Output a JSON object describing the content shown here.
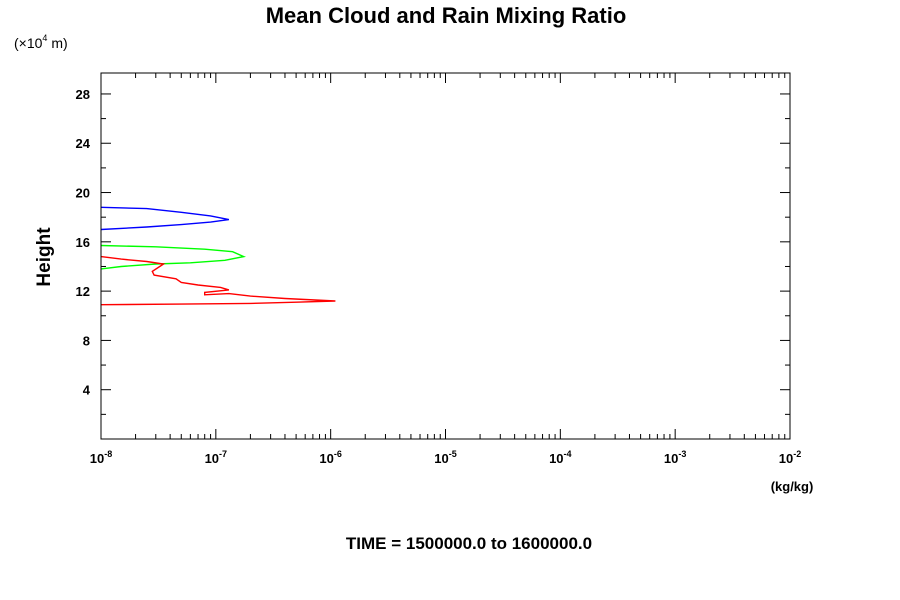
{
  "chart_data": {
    "type": "line",
    "title": "Mean Cloud and Rain Mixing Ratio",
    "ylabel": "Height",
    "y_multiplier": "(×10",
    "y_multiplier_exp": "4",
    "y_multiplier_unit": " m)",
    "xlabel_unit": "(kg/kg)",
    "footer": "TIME = 1500000.0 to 1600000.0",
    "x_scale": "log",
    "xlim": [
      1e-08,
      0.01
    ],
    "ylim": [
      0,
      29.7
    ],
    "x_tick_base": "10",
    "x_tick_exponents": [
      "-8",
      "-7",
      "-6",
      "-5",
      "-4",
      "-3",
      "-2"
    ],
    "y_ticks": [
      4,
      8,
      12,
      16,
      20,
      24,
      28
    ],
    "grid": false,
    "series": [
      {
        "color": "#0000ff",
        "points": [
          [
            1e-08,
            18.8
          ],
          [
            2.5e-08,
            18.7
          ],
          [
            5e-08,
            18.4
          ],
          [
            9e-08,
            18.1
          ],
          [
            1.3e-07,
            17.8
          ],
          [
            9e-08,
            17.6
          ],
          [
            5e-08,
            17.4
          ],
          [
            2.5e-08,
            17.2
          ],
          [
            1e-08,
            17.0
          ]
        ]
      },
      {
        "color": "#00ff00",
        "points": [
          [
            1e-08,
            15.7
          ],
          [
            3e-08,
            15.6
          ],
          [
            8e-08,
            15.4
          ],
          [
            1.4e-07,
            15.2
          ],
          [
            1.75e-07,
            14.8
          ],
          [
            1.2e-07,
            14.5
          ],
          [
            6e-08,
            14.3
          ],
          [
            3e-08,
            14.2
          ],
          [
            1.5e-08,
            14.0
          ],
          [
            1e-08,
            13.8
          ]
        ]
      },
      {
        "color": "#ff0000",
        "points": [
          [
            1e-08,
            14.8
          ],
          [
            1.5e-08,
            14.6
          ],
          [
            2.5e-08,
            14.4
          ],
          [
            3.5e-08,
            14.2
          ],
          [
            2.8e-08,
            13.6
          ],
          [
            2.9e-08,
            13.3
          ],
          [
            4.5e-08,
            13.0
          ],
          [
            5e-08,
            12.7
          ],
          [
            7e-08,
            12.5
          ],
          [
            1.1e-07,
            12.3
          ],
          [
            1.3e-07,
            12.1
          ],
          [
            8e-08,
            11.9
          ],
          [
            8e-08,
            11.7
          ],
          [
            1.3e-07,
            11.8
          ],
          [
            2e-07,
            11.6
          ],
          [
            4e-07,
            11.4
          ],
          [
            1.1e-06,
            11.2
          ],
          [
            5e-07,
            11.1
          ],
          [
            2e-07,
            11.0
          ],
          [
            5e-08,
            10.95
          ],
          [
            1e-08,
            10.9
          ]
        ]
      }
    ]
  }
}
